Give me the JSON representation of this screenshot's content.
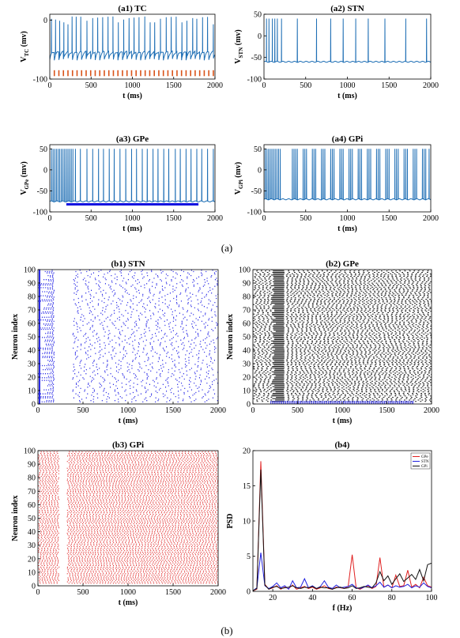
{
  "figure": {
    "caption_a": "(a)",
    "caption_b": "(b)"
  },
  "colors": {
    "trace": "#1f6fb5",
    "pulse": "#d95319",
    "gpe_bar": "#1010e0",
    "stn_raster": "#2a2ae6",
    "gpe_raster": "#111111",
    "gpi_raster": "#e02020",
    "psd_gpe": "#e02020",
    "psd_stn": "#2020e0",
    "psd_gpi": "#111111"
  },
  "chart_data": [
    {
      "id": "a1",
      "type": "line",
      "title": "(a1) TC",
      "xlabel": "t (ms)",
      "ylabel_main": "V",
      "ylabel_sub": "TC",
      "ylabel_unit": " (mv)",
      "xlim": [
        0,
        2000
      ],
      "ylim": [
        -100,
        10
      ],
      "xticks": [
        "0",
        "500",
        "1000",
        "1500",
        "2000"
      ],
      "yticks": [
        "-100",
        "0"
      ],
      "spike_times": [
        20,
        70,
        120,
        170,
        220,
        270,
        320,
        375,
        450,
        520,
        580,
        640,
        705,
        765,
        830,
        895,
        960,
        1020,
        1080,
        1150,
        1215,
        1270,
        1340,
        1410,
        1470,
        1530,
        1600,
        1660,
        1730,
        1780,
        1850,
        1910,
        1980
      ],
      "baseline_mv": -60,
      "peak_mv": 0,
      "pulse_times": [
        55,
        110,
        165,
        220,
        275,
        330,
        385,
        440,
        495,
        550,
        605,
        660,
        715,
        770,
        825,
        880,
        935,
        990,
        1045,
        1100,
        1155,
        1210,
        1265,
        1320,
        1375,
        1430,
        1485,
        1540,
        1595,
        1650,
        1705,
        1760,
        1815,
        1870,
        1925,
        1980
      ],
      "pulse_top_mv": -85,
      "pulse_bottom_mv": -95
    },
    {
      "id": "a2",
      "type": "line",
      "title": "(a2) STN",
      "xlabel": "t (ms)",
      "ylabel_main": "V",
      "ylabel_sub": "STN",
      "ylabel_unit": " (mv)",
      "xlim": [
        0,
        2000
      ],
      "ylim": [
        -100,
        50
      ],
      "xticks": [
        "0",
        "500",
        "1000",
        "1500",
        "2000"
      ],
      "yticks": [
        "-100",
        "-50",
        "0",
        "50"
      ],
      "spike_times": [
        30,
        60,
        100,
        130,
        160,
        210,
        400,
        630,
        800,
        950,
        1100,
        1250,
        1450,
        1700,
        1950
      ],
      "baseline_mv": -60,
      "peak_mv": 40
    },
    {
      "id": "a3",
      "type": "line",
      "title": "(a3) GPe",
      "xlabel": "t (ms)",
      "ylabel_main": "V",
      "ylabel_sub": "GPe",
      "ylabel_unit": " (mv)",
      "xlim": [
        0,
        2000
      ],
      "ylim": [
        -100,
        60
      ],
      "xticks": [
        "0",
        "500",
        "1000",
        "1500",
        "2000"
      ],
      "yticks": [
        "-100",
        "-50",
        "0",
        "50"
      ],
      "spike_times": [
        20,
        40,
        60,
        80,
        100,
        120,
        140,
        160,
        180,
        200,
        220,
        240,
        260,
        280,
        310,
        370,
        450,
        520,
        590,
        650,
        720,
        780,
        850,
        920,
        990,
        1050,
        1120,
        1180,
        1250,
        1310,
        1380,
        1440,
        1520,
        1580,
        1650,
        1710,
        1780,
        1840,
        1910,
        1980
      ],
      "baseline_mv": -75,
      "peak_mv": 50,
      "bar_start": 200,
      "bar_end": 1800,
      "bar_mv": -82
    },
    {
      "id": "a4",
      "type": "line",
      "title": "(a4) GPi",
      "xlabel": "t (ms)",
      "ylabel_main": "V",
      "ylabel_sub": "GPi",
      "ylabel_unit": " (mv)",
      "xlim": [
        0,
        2000
      ],
      "ylim": [
        -100,
        60
      ],
      "xticks": [
        "0",
        "500",
        "1000",
        "1500",
        "2000"
      ],
      "yticks": [
        "-100",
        "-50",
        "0",
        "50"
      ],
      "spike_times": [
        15,
        35,
        55,
        75,
        95,
        115,
        135,
        155,
        175,
        195,
        340,
        360,
        380,
        400,
        470,
        490,
        510,
        580,
        600,
        620,
        690,
        710,
        730,
        800,
        820,
        840,
        910,
        930,
        950,
        1020,
        1040,
        1060,
        1130,
        1150,
        1170,
        1240,
        1260,
        1280,
        1350,
        1370,
        1390,
        1460,
        1480,
        1500,
        1570,
        1590,
        1610,
        1680,
        1700,
        1720,
        1790,
        1810,
        1830,
        1900,
        1920,
        1940,
        1980
      ],
      "baseline_mv": -70,
      "peak_mv": 50
    },
    {
      "id": "b1",
      "type": "scatter",
      "title": "(b1) STN",
      "xlabel": "t (ms)",
      "ylabel": "Neuron  index",
      "xlim": [
        0,
        2000
      ],
      "ylim": [
        0,
        100
      ],
      "xticks": [
        "0",
        "500",
        "1000",
        "1500",
        "2000"
      ],
      "yticks": [
        "0",
        "10",
        "20",
        "30",
        "40",
        "50",
        "60",
        "70",
        "80",
        "90",
        "100"
      ],
      "neurons": 100,
      "silent_window": [
        220,
        380
      ]
    },
    {
      "id": "b2",
      "type": "scatter",
      "title": "(b2) GPe",
      "xlabel": "t (ms)",
      "ylabel": "Neuron  index",
      "xlim": [
        0,
        2000
      ],
      "ylim": [
        0,
        100
      ],
      "xticks": [
        "0",
        "500",
        "1000",
        "1500",
        "2000"
      ],
      "yticks": [
        "0",
        "10",
        "20",
        "30",
        "40",
        "50",
        "60",
        "70",
        "80",
        "90",
        "100"
      ],
      "neurons": 100,
      "dense_window": [
        200,
        330
      ],
      "stim_start": 200,
      "stim_end": 1800
    },
    {
      "id": "b3",
      "type": "scatter",
      "title": "(b3) GPi",
      "xlabel": "t (ms)",
      "ylabel": "Neuron  index",
      "xlim": [
        0,
        2000
      ],
      "ylim": [
        0,
        100
      ],
      "xticks": [
        "0",
        "500",
        "1000",
        "1500",
        "2000"
      ],
      "yticks": [
        "0",
        "10",
        "20",
        "30",
        "40",
        "50",
        "60",
        "70",
        "80",
        "90",
        "100"
      ],
      "neurons": 100,
      "silent_window": [
        230,
        320
      ]
    },
    {
      "id": "b4",
      "type": "line",
      "title": "(b4)",
      "xlabel": "f (Hz)",
      "ylabel": "PSD",
      "xlim": [
        10,
        100
      ],
      "ylim": [
        0,
        20
      ],
      "xticks": [
        "20",
        "40",
        "60",
        "80",
        "100"
      ],
      "yticks": [
        "0",
        "5",
        "10",
        "15",
        "20"
      ],
      "x": [
        10,
        12,
        14,
        16,
        18,
        20,
        22,
        24,
        26,
        28,
        30,
        32,
        34,
        36,
        38,
        40,
        42,
        44,
        46,
        48,
        50,
        52,
        54,
        56,
        58,
        60,
        62,
        64,
        66,
        68,
        70,
        72,
        74,
        76,
        78,
        80,
        82,
        84,
        86,
        88,
        90,
        92,
        94,
        96,
        98,
        100
      ],
      "series": [
        {
          "name": "GPe",
          "values": [
            0.1,
            0.3,
            18.5,
            1.0,
            0.3,
            0.5,
            0.8,
            0.3,
            0.6,
            0.4,
            0.9,
            0.3,
            0.5,
            0.7,
            0.4,
            0.6,
            0.3,
            0.5,
            0.8,
            0.4,
            0.3,
            0.6,
            0.5,
            0.4,
            0.7,
            5.2,
            0.5,
            0.3,
            0.6,
            0.8,
            0.4,
            0.7,
            4.8,
            0.6,
            0.9,
            0.5,
            2.3,
            0.7,
            0.8,
            3.0,
            0.6,
            1.0,
            0.5,
            2.0,
            0.8,
            0.6
          ]
        },
        {
          "name": "STN",
          "values": [
            0.1,
            0.5,
            5.5,
            0.8,
            0.4,
            0.7,
            1.2,
            0.5,
            0.8,
            0.3,
            1.5,
            0.5,
            0.6,
            1.8,
            0.5,
            0.8,
            0.4,
            0.7,
            1.5,
            0.6,
            0.4,
            0.9,
            0.5,
            0.6,
            0.7,
            1.0,
            0.5,
            0.4,
            0.6,
            0.9,
            0.5,
            0.8,
            1.3,
            0.6,
            0.9,
            0.5,
            0.8,
            0.6,
            0.7,
            1.0,
            0.5,
            0.8,
            0.6,
            1.2,
            0.7,
            0.5
          ]
        },
        {
          "name": "GPi",
          "values": [
            0.1,
            0.4,
            17.3,
            0.9,
            0.3,
            0.6,
            0.7,
            0.4,
            0.5,
            0.6,
            0.8,
            0.5,
            0.4,
            0.6,
            0.5,
            0.7,
            0.4,
            0.6,
            0.5,
            0.5,
            0.3,
            0.5,
            0.6,
            0.4,
            0.5,
            0.8,
            0.4,
            0.5,
            0.7,
            0.6,
            0.5,
            1.2,
            2.8,
            1.5,
            2.2,
            1.0,
            1.8,
            2.5,
            1.4,
            1.9,
            2.4,
            1.7,
            3.1,
            1.5,
            3.8,
            4.0
          ]
        }
      ],
      "legend": [
        "GPe",
        "STN",
        "GPi"
      ],
      "legend_position": "top-right"
    }
  ]
}
